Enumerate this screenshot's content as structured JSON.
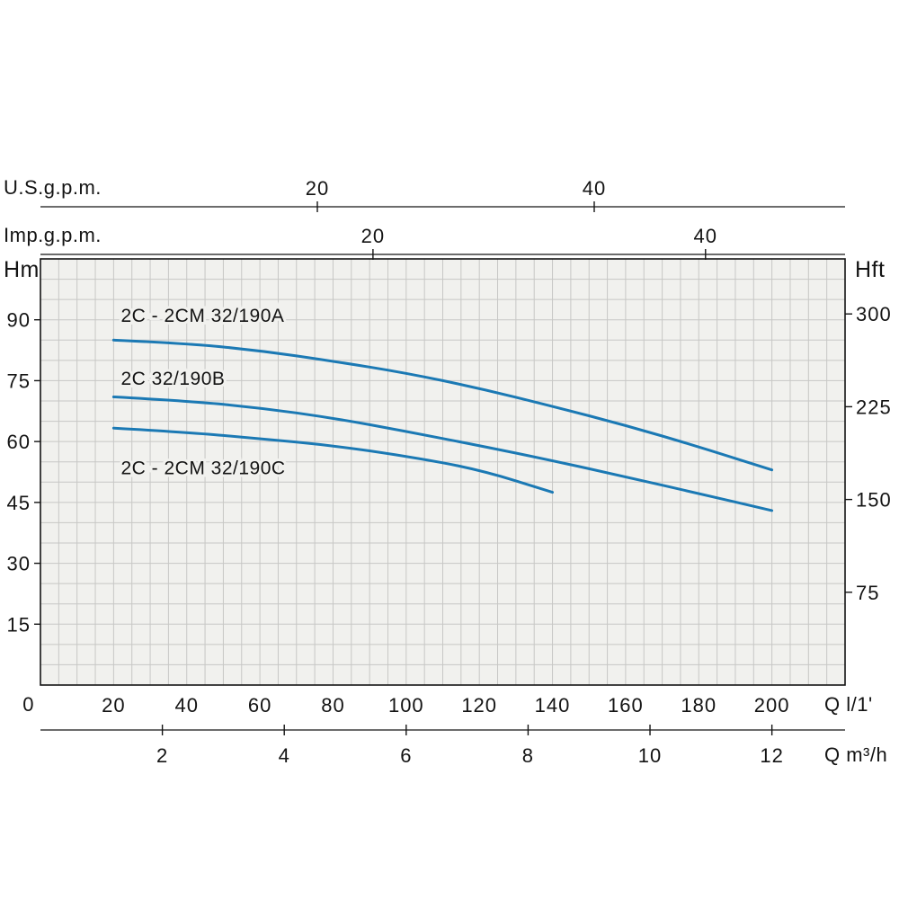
{
  "chart_data": {
    "type": "line",
    "plot_bg": "#f1f1ee",
    "curve_color": "#1b79b4",
    "grid_color": "#c7c7c5",
    "border_color": "#141414",
    "text_color": "#141414",
    "grid": {
      "x_step": 5,
      "y_step": 5
    },
    "axes": {
      "us_gpm": {
        "label": "U.S.g.p.m.",
        "ticks": [
          20,
          40
        ]
      },
      "imp_gpm": {
        "label": "Imp.g.p.m.",
        "ticks": [
          20,
          40
        ]
      },
      "head_m": {
        "label": "Hm",
        "origin": "0",
        "ticks": [
          15,
          30,
          45,
          60,
          75,
          90
        ],
        "range": [
          0,
          105
        ]
      },
      "head_ft": {
        "label": "Hft",
        "ticks": [
          75,
          150,
          225,
          300
        ]
      },
      "flow_l_min": {
        "label": "Q l/1'",
        "ticks": [
          20,
          40,
          60,
          80,
          100,
          120,
          140,
          160,
          180,
          200
        ],
        "range": [
          0,
          220
        ]
      },
      "flow_m3_h": {
        "label": "Q m³/h",
        "ticks": [
          2,
          4,
          6,
          8,
          10,
          12
        ]
      }
    },
    "series": [
      {
        "name": "2C - 2CM 32/190A",
        "label_at": [
          22,
          89.5
        ],
        "points": [
          [
            20,
            85
          ],
          [
            40,
            84.2
          ],
          [
            60,
            82.4
          ],
          [
            80,
            79.8
          ],
          [
            100,
            76.9
          ],
          [
            120,
            73.1
          ],
          [
            140,
            68.7
          ],
          [
            160,
            64
          ],
          [
            180,
            58.7
          ],
          [
            200,
            53
          ]
        ]
      },
      {
        "name": "2C 32/190B",
        "label_at": [
          22,
          74
        ],
        "points": [
          [
            20,
            71
          ],
          [
            40,
            70
          ],
          [
            60,
            68.3
          ],
          [
            80,
            65.8
          ],
          [
            100,
            62.5
          ],
          [
            120,
            59
          ],
          [
            140,
            55.3
          ],
          [
            160,
            51.3
          ],
          [
            180,
            47.2
          ],
          [
            200,
            43
          ]
        ]
      },
      {
        "name": "2C - 2CM 32/190C",
        "label_at": [
          22,
          52
        ],
        "points": [
          [
            20,
            63.3
          ],
          [
            40,
            62.3
          ],
          [
            60,
            60.7
          ],
          [
            80,
            59
          ],
          [
            100,
            56.4
          ],
          [
            120,
            53.1
          ],
          [
            140,
            47.5
          ]
        ]
      }
    ]
  }
}
